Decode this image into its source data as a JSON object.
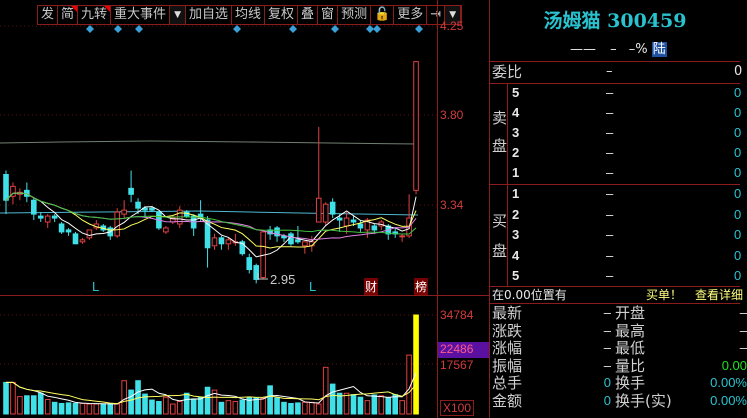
{
  "toolbar": {
    "buttons": [
      "发",
      "简",
      "九转",
      "重大事件",
      "▼",
      "加自选",
      "均线",
      "复权",
      "叠",
      "窗",
      "预测",
      "🔓",
      "更多",
      "⇥",
      "▼"
    ],
    "flagged": [
      1,
      2
    ]
  },
  "price_axis": {
    "ticks": [
      "4.25",
      "3.80",
      "3.34"
    ]
  },
  "volume_axis": {
    "ticks": [
      "34784",
      "22486",
      "17567"
    ],
    "highlighted": "22486",
    "unit": "X100"
  },
  "chart_markers": {
    "low_label": "2.95",
    "l_marks": [
      "L",
      "L"
    ],
    "finance_badge": "财",
    "list_badge": "榜"
  },
  "colors": {
    "up": "#e04040",
    "down": "#40e0e8",
    "selected_volume": "#ffff00",
    "ma5": "#ffffff",
    "ma10": "#ffff60",
    "ma20": "#e080e0",
    "ma60": "#40c040",
    "grid": "#8a1c1c"
  },
  "candles": [
    [
      3.5,
      3.37,
      3.52,
      3.3
    ],
    [
      3.39,
      3.44,
      3.46,
      3.35
    ],
    [
      3.4,
      3.41,
      3.43,
      3.37
    ],
    [
      3.42,
      3.39,
      3.46,
      3.36
    ],
    [
      3.37,
      3.3,
      3.38,
      3.27
    ],
    [
      3.29,
      3.28,
      3.31,
      3.26
    ],
    [
      3.26,
      3.29,
      3.3,
      3.23
    ],
    [
      3.29,
      3.28,
      3.3,
      3.26
    ],
    [
      3.25,
      3.21,
      3.26,
      3.2
    ],
    [
      3.22,
      3.21,
      3.23,
      3.19
    ],
    [
      3.2,
      3.15,
      3.21,
      3.15
    ],
    [
      3.16,
      3.17,
      3.18,
      3.15
    ],
    [
      3.18,
      3.22,
      3.22,
      3.17
    ],
    [
      3.23,
      3.25,
      3.27,
      3.22
    ],
    [
      3.24,
      3.22,
      3.25,
      3.21
    ],
    [
      3.23,
      3.19,
      3.24,
      3.17
    ],
    [
      3.19,
      3.31,
      3.33,
      3.18
    ],
    [
      3.3,
      3.32,
      3.37,
      3.28
    ],
    [
      3.43,
      3.4,
      3.52,
      3.36
    ],
    [
      3.36,
      3.33,
      3.38,
      3.3
    ],
    [
      3.33,
      3.32,
      3.34,
      3.28
    ],
    [
      3.33,
      3.32,
      3.34,
      3.31
    ],
    [
      3.31,
      3.23,
      3.31,
      3.22
    ],
    [
      3.21,
      3.23,
      3.24,
      3.2
    ],
    [
      3.26,
      3.28,
      3.29,
      3.25
    ],
    [
      3.25,
      3.32,
      3.34,
      3.23
    ],
    [
      3.31,
      3.29,
      3.32,
      3.28
    ],
    [
      3.29,
      3.23,
      3.3,
      3.19
    ],
    [
      3.3,
      3.28,
      3.37,
      3.26
    ],
    [
      3.27,
      3.13,
      3.29,
      3.03
    ],
    [
      3.14,
      3.18,
      3.2,
      3.12
    ],
    [
      3.18,
      3.15,
      3.19,
      3.12
    ],
    [
      3.15,
      3.17,
      3.18,
      3.12
    ],
    [
      3.16,
      3.16,
      3.2,
      3.14
    ],
    [
      3.16,
      3.1,
      3.17,
      3.09
    ],
    [
      3.08,
      3.02,
      3.1,
      3.0
    ],
    [
      3.04,
      2.97,
      3.05,
      2.95
    ],
    [
      2.98,
      3.21,
      3.22,
      2.97
    ],
    [
      3.22,
      3.2,
      3.24,
      3.17
    ],
    [
      3.23,
      3.19,
      3.24,
      3.16
    ],
    [
      3.19,
      3.18,
      3.2,
      3.16
    ],
    [
      3.2,
      3.15,
      3.21,
      3.14
    ],
    [
      3.17,
      3.16,
      3.24,
      3.15
    ],
    [
      3.14,
      3.16,
      3.16,
      3.1
    ],
    [
      3.14,
      3.16,
      3.19,
      3.11
    ],
    [
      3.26,
      3.38,
      3.74,
      3.26
    ],
    [
      3.26,
      3.35,
      3.36,
      3.24
    ],
    [
      3.36,
      3.3,
      3.38,
      3.28
    ],
    [
      3.28,
      3.27,
      3.3,
      3.21
    ],
    [
      3.24,
      3.28,
      3.31,
      3.2
    ],
    [
      3.27,
      3.26,
      3.29,
      3.24
    ],
    [
      3.25,
      3.23,
      3.27,
      3.21
    ],
    [
      3.22,
      3.27,
      3.28,
      3.18
    ],
    [
      3.24,
      3.22,
      3.25,
      3.2
    ],
    [
      3.24,
      3.26,
      3.27,
      3.22
    ],
    [
      3.24,
      3.2,
      3.25,
      3.17
    ],
    [
      3.21,
      3.2,
      3.23,
      3.18
    ],
    [
      3.19,
      3.19,
      3.2,
      3.16
    ],
    [
      3.19,
      3.28,
      3.4,
      3.18
    ],
    [
      3.42,
      4.07,
      4.07,
      3.4
    ]
  ],
  "volumes": [
    11100,
    11100,
    6100,
    6400,
    6400,
    7300,
    5100,
    4100,
    3700,
    3900,
    3700,
    3700,
    3500,
    3500,
    3500,
    3500,
    3500,
    11700,
    8400,
    11700,
    7000,
    4900,
    4400,
    5900,
    3500,
    4400,
    7300,
    5300,
    5900,
    9400,
    8400,
    4100,
    4700,
    4400,
    4900,
    5900,
    5600,
    5600,
    9900,
    5600,
    4100,
    3700,
    3900,
    4100,
    4100,
    3500,
    16400,
    10500,
    7300,
    7300,
    6800,
    5900,
    4700,
    6700,
    6400,
    5600,
    6800,
    4700,
    20700,
    34784
  ],
  "quote": {
    "name_code": "汤姆猫 300459",
    "price_line": {
      "price": "——",
      "change": "–",
      "pct": "–%",
      "market_badge": "陆"
    },
    "weibi": {
      "label": "委比",
      "value": "–",
      "right": "0"
    },
    "sell_label": "卖盘",
    "buy_label": "买盘",
    "sell": [
      {
        "level": "5",
        "price": "–",
        "vol": "0"
      },
      {
        "level": "4",
        "price": "–",
        "vol": "0"
      },
      {
        "level": "3",
        "price": "–",
        "vol": "0"
      },
      {
        "level": "2",
        "price": "–",
        "vol": "0"
      },
      {
        "level": "1",
        "price": "–",
        "vol": "0"
      }
    ],
    "buy": [
      {
        "level": "1",
        "price": "–",
        "vol": "0"
      },
      {
        "level": "2",
        "price": "–",
        "vol": "0"
      },
      {
        "level": "3",
        "price": "–",
        "vol": "0"
      },
      {
        "level": "4",
        "price": "–",
        "vol": "0"
      },
      {
        "level": "5",
        "price": "–",
        "vol": "0"
      }
    ],
    "notice": {
      "text": "在0.00位置有",
      "buy": "买单！",
      "detail": "查看详细"
    },
    "stats": [
      {
        "l": "最新",
        "lv": "–",
        "r": "开盘",
        "rv": "–"
      },
      {
        "l": "涨跌",
        "lv": "–",
        "r": "最高",
        "rv": "–"
      },
      {
        "l": "涨幅",
        "lv": "–",
        "r": "最低",
        "rv": "–"
      },
      {
        "l": "振幅",
        "lv": "–",
        "r": "量比",
        "rv": "0.00"
      },
      {
        "l": "总手",
        "lv": "0",
        "r": "换手",
        "rv": "0.00%"
      },
      {
        "l": "金额",
        "lv": "0",
        "r": "换手(实)",
        "rv": "0.00%"
      }
    ]
  }
}
